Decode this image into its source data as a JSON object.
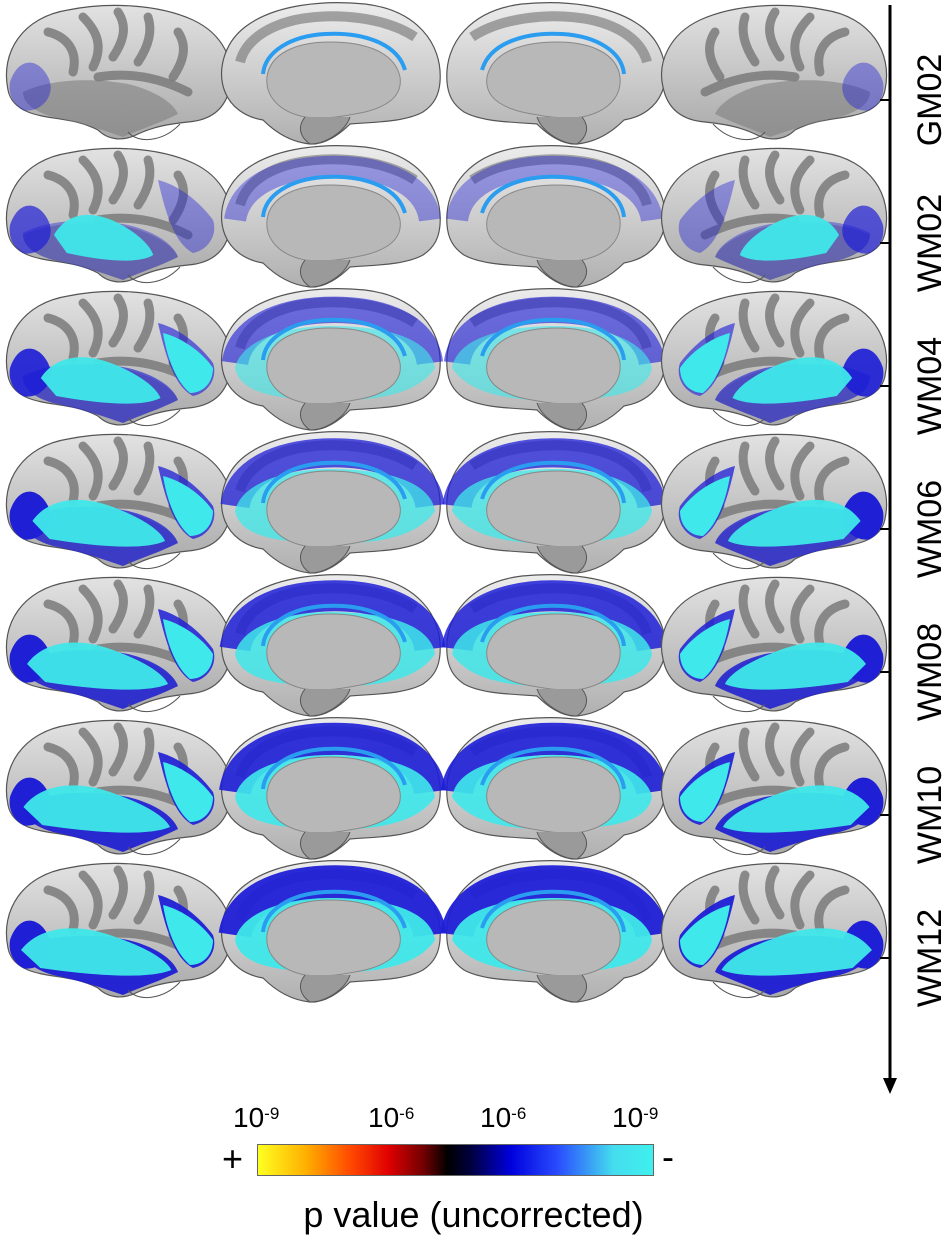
{
  "rows": [
    {
      "label": "GM02",
      "level": 0.12
    },
    {
      "label": "WM02",
      "level": 0.4
    },
    {
      "label": "WM04",
      "level": 0.62
    },
    {
      "label": "WM06",
      "level": 0.76
    },
    {
      "label": "WM08",
      "level": 0.85
    },
    {
      "label": "WM10",
      "level": 0.91
    },
    {
      "label": "WM12",
      "level": 0.95
    }
  ],
  "views": [
    "left-lateral",
    "left-medial",
    "right-medial",
    "right-lateral"
  ],
  "colorbar": {
    "ticks": [
      {
        "base": "10",
        "exp": "-9"
      },
      {
        "base": "10",
        "exp": "-6"
      },
      {
        "base": "10",
        "exp": "-6"
      },
      {
        "base": "10",
        "exp": "-9"
      }
    ],
    "plus_sign": "+",
    "minus_sign": "-",
    "title": "p value (uncorrected)"
  },
  "colors": {
    "cortex_light": "#dcdcdc",
    "cortex_dark": "#7a7a7a",
    "medial_wall": "#b8b8b8",
    "strong_blue": "#1f1fd6",
    "cyan": "#3fe8ea"
  }
}
